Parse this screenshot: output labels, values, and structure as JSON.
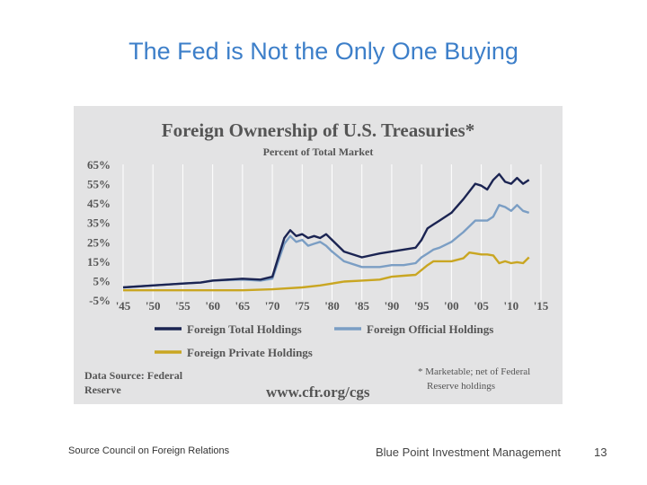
{
  "slide": {
    "title": "The Fed is Not the Only One Buying",
    "footer_source": "Source Council on Foreign Relations",
    "footer_company": "Blue Point Investment Management",
    "page_number": "13"
  },
  "chart_data": {
    "type": "line",
    "title": "Foreign Ownership of U.S. Treasuries*",
    "subtitle": "Percent of Total Market",
    "x_ticks": [
      "'45",
      "'50",
      "'55",
      "'60",
      "'65",
      "'70",
      "'75",
      "'80",
      "'85",
      "'90",
      "'95",
      "'00",
      "'05",
      "'10",
      "'15"
    ],
    "y_ticks": [
      "65%",
      "55%",
      "45%",
      "35%",
      "25%",
      "15%",
      "5%",
      "-5%"
    ],
    "xlim": [
      1945,
      2015
    ],
    "ylim": [
      -5,
      65
    ],
    "grid": "vertical",
    "legend_position": "bottom",
    "data_source": [
      "Data Source: Federal",
      "Reserve"
    ],
    "url": "www.cfr.org/cgs",
    "footnote": [
      "* Marketable; net of Federal",
      "Reserve holdings"
    ],
    "series": [
      {
        "name": "Foreign Total Holdings",
        "color": "#1b2452",
        "x": [
          1945,
          1950,
          1955,
          1958,
          1960,
          1965,
          1968,
          1970,
          1971,
          1972,
          1973,
          1974,
          1975,
          1976,
          1977,
          1978,
          1979,
          1980,
          1982,
          1985,
          1988,
          1990,
          1992,
          1994,
          1995,
          1996,
          1997,
          1998,
          2000,
          2002,
          2004,
          2005,
          2006,
          2007,
          2008,
          2009,
          2010,
          2011,
          2012,
          2013
        ],
        "y": [
          1.5,
          2.5,
          3.5,
          4,
          5,
          6,
          5.5,
          7,
          17,
          27,
          31,
          28,
          29,
          27,
          28,
          27,
          29,
          26,
          20,
          17,
          19,
          20,
          21,
          22,
          26,
          32,
          34,
          36,
          40,
          47,
          55,
          54,
          52,
          57,
          60,
          56,
          55,
          58,
          55,
          57
        ]
      },
      {
        "name": "Foreign Official Holdings",
        "color": "#7b9ec4",
        "x": [
          1945,
          1950,
          1955,
          1958,
          1960,
          1965,
          1968,
          1970,
          1971,
          1972,
          1973,
          1974,
          1975,
          1976,
          1977,
          1978,
          1979,
          1980,
          1982,
          1985,
          1988,
          1990,
          1992,
          1994,
          1995,
          1996,
          1997,
          1998,
          2000,
          2002,
          2004,
          2005,
          2006,
          2007,
          2008,
          2009,
          2010,
          2011,
          2012,
          2013
        ],
        "y": [
          1.5,
          2.5,
          3.5,
          4,
          5,
          5.5,
          5,
          6,
          15,
          24,
          28,
          25,
          26,
          23,
          24,
          25,
          23,
          20,
          15,
          12,
          12,
          13,
          13,
          14,
          17,
          19,
          21,
          22,
          25,
          30,
          36,
          36,
          36,
          38,
          44,
          43,
          41,
          44,
          41,
          40
        ]
      },
      {
        "name": "Foreign Private Holdings",
        "color": "#c9a622",
        "x": [
          1945,
          1950,
          1955,
          1960,
          1965,
          1970,
          1975,
          1978,
          1980,
          1982,
          1985,
          1988,
          1990,
          1992,
          1994,
          1996,
          1997,
          1998,
          2000,
          2002,
          2003,
          2004,
          2005,
          2006,
          2007,
          2008,
          2009,
          2010,
          2011,
          2012,
          2013
        ],
        "y": [
          0,
          0,
          0,
          0,
          0,
          0.5,
          1.5,
          2.5,
          3.5,
          4.5,
          5,
          5.5,
          7,
          7.5,
          8,
          13,
          15,
          15,
          15,
          16.5,
          19.5,
          19,
          18.5,
          18.5,
          18,
          14,
          15,
          14,
          14.5,
          14,
          17
        ]
      }
    ]
  }
}
